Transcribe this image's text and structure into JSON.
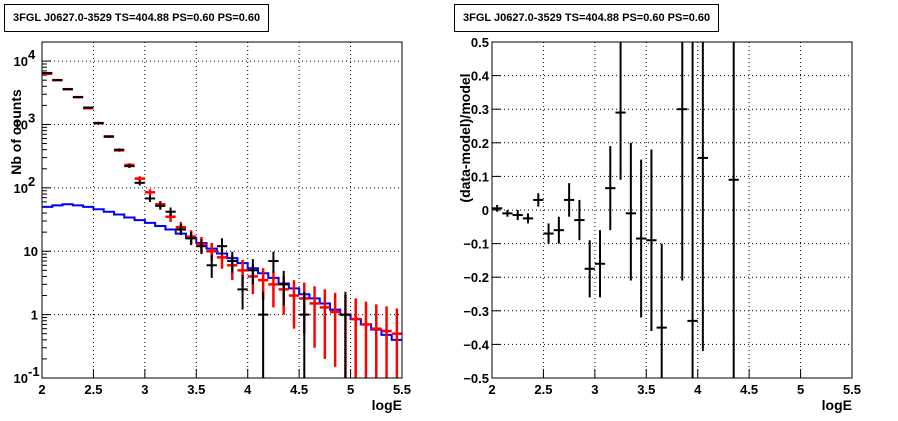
{
  "chart_data": [
    {
      "type": "line",
      "title": "3FGL J0627.0-3529 TS=404.88 PS=0.60 PS=0.60",
      "xlabel": "logE",
      "ylabel": "Nb of counts",
      "xlim": [
        2,
        5.5
      ],
      "ylim": [
        0.1,
        20000
      ],
      "yscale": "log",
      "grid": true,
      "x_ticks": [
        "2",
        "2.5",
        "3",
        "3.5",
        "4",
        "4.5",
        "5",
        "5.5"
      ],
      "y_ticks": [
        {
          "value": 0.1,
          "label": "10",
          "exp": "-1"
        },
        {
          "value": 1,
          "label": "1",
          "exp": ""
        },
        {
          "value": 10,
          "label": "10",
          "exp": ""
        },
        {
          "value": 100,
          "label": "10",
          "exp": "2"
        },
        {
          "value": 1000,
          "label": "10",
          "exp": "3"
        },
        {
          "value": 10000,
          "label": "10",
          "exp": "4"
        }
      ],
      "series": [
        {
          "color": "#000000",
          "style": "errorbar",
          "points": [
            {
              "x": 2.05,
              "y": 6500,
              "lo": 6300,
              "hi": 6700
            },
            {
              "x": 2.15,
              "y": 5000,
              "lo": 4850,
              "hi": 5150
            },
            {
              "x": 2.25,
              "y": 3600,
              "lo": 3480,
              "hi": 3720
            },
            {
              "x": 2.35,
              "y": 2700,
              "lo": 2600,
              "hi": 2800
            },
            {
              "x": 2.45,
              "y": 1850,
              "lo": 1780,
              "hi": 1920
            },
            {
              "x": 2.55,
              "y": 1050,
              "lo": 1000,
              "hi": 1100
            },
            {
              "x": 2.65,
              "y": 640,
              "lo": 615,
              "hi": 665
            },
            {
              "x": 2.75,
              "y": 400,
              "lo": 380,
              "hi": 420
            },
            {
              "x": 2.85,
              "y": 220,
              "lo": 205,
              "hi": 235
            },
            {
              "x": 2.95,
              "y": 120,
              "lo": 109,
              "hi": 131
            },
            {
              "x": 3.05,
              "y": 68,
              "lo": 60,
              "hi": 76
            },
            {
              "x": 3.15,
              "y": 52,
              "lo": 45,
              "hi": 59
            },
            {
              "x": 3.25,
              "y": 42,
              "lo": 36,
              "hi": 49
            },
            {
              "x": 3.35,
              "y": 22,
              "lo": 18,
              "hi": 27
            },
            {
              "x": 3.45,
              "y": 16,
              "lo": 12.5,
              "hi": 20
            },
            {
              "x": 3.55,
              "y": 12,
              "lo": 9,
              "hi": 15.5
            },
            {
              "x": 3.65,
              "y": 6,
              "lo": 3.8,
              "hi": 8.8
            },
            {
              "x": 3.75,
              "y": 12,
              "lo": 8.8,
              "hi": 16
            },
            {
              "x": 3.85,
              "y": 7,
              "lo": 4.6,
              "hi": 9.8
            },
            {
              "x": 3.95,
              "y": 2.5,
              "lo": 1.2,
              "hi": 4.2
            },
            {
              "x": 4.05,
              "y": 5,
              "lo": 3,
              "hi": 7.5
            },
            {
              "x": 4.15,
              "y": 1,
              "lo": 0.1,
              "hi": 2.3
            },
            {
              "x": 4.25,
              "y": 7,
              "lo": 4.6,
              "hi": 9.8
            },
            {
              "x": 4.35,
              "y": 3,
              "lo": 1.4,
              "hi": 4.9
            },
            {
              "x": 4.55,
              "y": 1,
              "lo": 0.1,
              "hi": 2.3
            },
            {
              "x": 4.95,
              "y": 1,
              "lo": 0.1,
              "hi": 2.3
            }
          ]
        },
        {
          "color": "#ff0000",
          "style": "errorbar",
          "points": [
            {
              "x": 2.05,
              "y": 6300,
              "lo": 6220,
              "hi": 6380
            },
            {
              "x": 2.15,
              "y": 5000,
              "lo": 4930,
              "hi": 5070
            },
            {
              "x": 2.25,
              "y": 3600,
              "lo": 3540,
              "hi": 3660
            },
            {
              "x": 2.35,
              "y": 2700,
              "lo": 2650,
              "hi": 2750
            },
            {
              "x": 2.45,
              "y": 1800,
              "lo": 1760,
              "hi": 1840
            },
            {
              "x": 2.55,
              "y": 1050,
              "lo": 1020,
              "hi": 1080
            },
            {
              "x": 2.65,
              "y": 650,
              "lo": 625,
              "hi": 675
            },
            {
              "x": 2.75,
              "y": 390,
              "lo": 370,
              "hi": 410
            },
            {
              "x": 2.85,
              "y": 230,
              "lo": 215,
              "hi": 245
            },
            {
              "x": 2.95,
              "y": 140,
              "lo": 128,
              "hi": 152
            },
            {
              "x": 3.05,
              "y": 85,
              "lo": 76,
              "hi": 95
            },
            {
              "x": 3.15,
              "y": 55,
              "lo": 48,
              "hi": 62
            },
            {
              "x": 3.25,
              "y": 35,
              "lo": 29,
              "hi": 41
            },
            {
              "x": 3.35,
              "y": 24,
              "lo": 19.5,
              "hi": 29
            },
            {
              "x": 3.45,
              "y": 17,
              "lo": 13,
              "hi": 21.5
            },
            {
              "x": 3.55,
              "y": 13,
              "lo": 9.6,
              "hi": 16.8
            },
            {
              "x": 3.65,
              "y": 10,
              "lo": 7,
              "hi": 13.5
            },
            {
              "x": 3.75,
              "y": 8,
              "lo": 5.3,
              "hi": 11
            },
            {
              "x": 3.85,
              "y": 6,
              "lo": 3.5,
              "hi": 8.6
            },
            {
              "x": 3.95,
              "y": 5,
              "lo": 2.8,
              "hi": 7.3
            },
            {
              "x": 4.05,
              "y": 4,
              "lo": 2.1,
              "hi": 6
            },
            {
              "x": 4.15,
              "y": 3.5,
              "lo": 1.7,
              "hi": 5.4
            },
            {
              "x": 4.25,
              "y": 3,
              "lo": 1.3,
              "hi": 4.8
            },
            {
              "x": 4.35,
              "y": 2.5,
              "lo": 1.0,
              "hi": 4.1
            },
            {
              "x": 4.45,
              "y": 2,
              "lo": 0.6,
              "hi": 3.5
            },
            {
              "x": 4.55,
              "y": 1.8,
              "lo": 0.5,
              "hi": 3.2
            },
            {
              "x": 4.65,
              "y": 1.5,
              "lo": 0.3,
              "hi": 2.8
            },
            {
              "x": 4.75,
              "y": 1.3,
              "lo": 0.2,
              "hi": 2.5
            },
            {
              "x": 4.85,
              "y": 1.1,
              "lo": 0.15,
              "hi": 2.2
            },
            {
              "x": 4.95,
              "y": 1.0,
              "lo": 0.1,
              "hi": 2.05
            },
            {
              "x": 5.05,
              "y": 0.85,
              "lo": 0.1,
              "hi": 1.8
            },
            {
              "x": 5.15,
              "y": 0.7,
              "lo": 0.1,
              "hi": 1.6
            },
            {
              "x": 5.25,
              "y": 0.6,
              "lo": 0.1,
              "hi": 1.45
            },
            {
              "x": 5.35,
              "y": 0.55,
              "lo": 0.1,
              "hi": 1.35
            },
            {
              "x": 5.45,
              "y": 0.5,
              "lo": 0.1,
              "hi": 1.25
            }
          ]
        },
        {
          "color": "#0000ff",
          "style": "step",
          "x": [
            2.0,
            2.1,
            2.2,
            2.3,
            2.4,
            2.5,
            2.6,
            2.7,
            2.8,
            2.9,
            3.0,
            3.1,
            3.2,
            3.3,
            3.4,
            3.5,
            3.6,
            3.7,
            3.8,
            3.9,
            4.0,
            4.1,
            4.2,
            4.3,
            4.4,
            4.5,
            4.6,
            4.7,
            4.8,
            4.9,
            5.0,
            5.1,
            5.2,
            5.3,
            5.4
          ],
          "values": [
            50,
            53,
            55,
            53,
            50,
            46,
            42,
            38,
            34,
            31,
            28,
            25,
            22,
            19,
            16,
            13.5,
            11,
            9.2,
            7.8,
            6.5,
            5.4,
            4.5,
            3.8,
            3.1,
            2.6,
            2.1,
            1.8,
            1.5,
            1.2,
            1.0,
            0.85,
            0.7,
            0.58,
            0.48,
            0.4
          ]
        }
      ]
    },
    {
      "type": "scatter",
      "title": "3FGL J0627.0-3529 TS=404.88 PS=0.60 PS=0.60",
      "xlabel": "logE",
      "ylabel": "(data-model)/model",
      "xlim": [
        2,
        5.5
      ],
      "ylim": [
        -0.5,
        0.5
      ],
      "grid": true,
      "x_ticks": [
        "2",
        "2.5",
        "3",
        "3.5",
        "4",
        "4.5",
        "5",
        "5.5"
      ],
      "y_ticks": [
        "−0.5",
        "−0.4",
        "−0.3",
        "−0.2",
        "−0.1",
        "0",
        "0.1",
        "0.2",
        "0.3",
        "0.4",
        "0.5"
      ],
      "points": [
        {
          "x": 2.05,
          "y": 0.005,
          "lo": -0.005,
          "hi": 0.015
        },
        {
          "x": 2.15,
          "y": -0.01,
          "lo": -0.02,
          "hi": 0.0
        },
        {
          "x": 2.25,
          "y": -0.015,
          "lo": -0.03,
          "hi": 0.0
        },
        {
          "x": 2.35,
          "y": -0.025,
          "lo": -0.04,
          "hi": -0.01
        },
        {
          "x": 2.45,
          "y": 0.03,
          "lo": 0.01,
          "hi": 0.05
        },
        {
          "x": 2.55,
          "y": -0.07,
          "lo": -0.1,
          "hi": -0.04
        },
        {
          "x": 2.65,
          "y": -0.06,
          "lo": -0.1,
          "hi": -0.02
        },
        {
          "x": 2.75,
          "y": 0.03,
          "lo": -0.02,
          "hi": 0.08
        },
        {
          "x": 2.85,
          "y": -0.03,
          "lo": -0.09,
          "hi": 0.03
        },
        {
          "x": 2.95,
          "y": -0.175,
          "lo": -0.26,
          "hi": -0.09
        },
        {
          "x": 3.05,
          "y": -0.16,
          "lo": -0.26,
          "hi": -0.06
        },
        {
          "x": 3.15,
          "y": 0.065,
          "lo": -0.06,
          "hi": 0.19
        },
        {
          "x": 3.25,
          "y": 0.29,
          "lo": 0.09,
          "hi": 0.5
        },
        {
          "x": 3.35,
          "y": -0.01,
          "lo": -0.21,
          "hi": 0.2
        },
        {
          "x": 3.45,
          "y": -0.085,
          "lo": -0.32,
          "hi": 0.15
        },
        {
          "x": 3.55,
          "y": -0.09,
          "lo": -0.36,
          "hi": 0.18
        },
        {
          "x": 3.65,
          "y": -0.35,
          "lo": -0.5,
          "hi": -0.1
        },
        {
          "x": 3.85,
          "y": 0.3,
          "lo": -0.21,
          "hi": 0.5
        },
        {
          "x": 3.95,
          "y": -0.33,
          "lo": -0.5,
          "hi": 0.5
        },
        {
          "x": 4.05,
          "y": 0.155,
          "lo": -0.42,
          "hi": 0.5
        },
        {
          "x": 4.35,
          "y": 0.09,
          "lo": -0.5,
          "hi": 0.5
        }
      ]
    }
  ]
}
